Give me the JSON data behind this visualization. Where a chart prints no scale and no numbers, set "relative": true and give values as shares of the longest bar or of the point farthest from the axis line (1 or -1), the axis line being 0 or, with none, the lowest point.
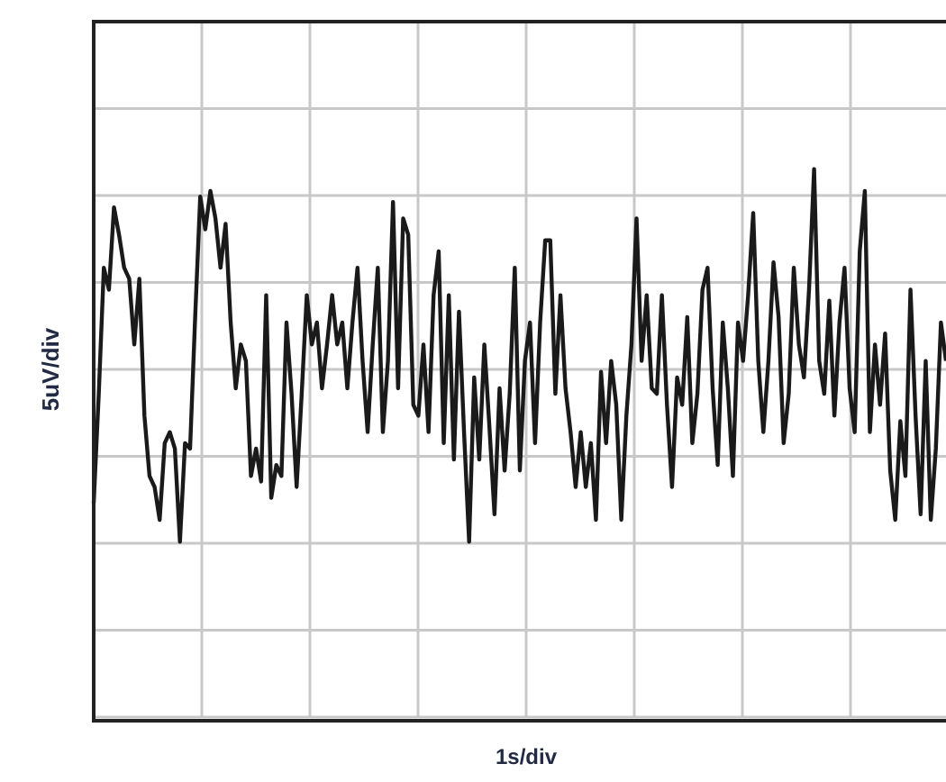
{
  "chart_data": {
    "type": "line",
    "xlabel": "1s/div",
    "ylabel": "5uV/div",
    "relative": true,
    "grid": true,
    "marker": "none",
    "line_style": "solid",
    "categories": [
      null,
      null,
      null,
      null,
      null,
      null,
      null,
      null,
      null,
      null,
      null,
      null,
      null,
      null,
      null,
      null,
      null,
      null,
      null,
      null,
      null,
      null,
      null,
      null,
      null,
      null,
      null,
      null,
      null,
      null,
      null,
      null,
      null,
      null,
      null,
      null,
      null,
      null,
      null,
      null,
      null,
      null,
      null,
      null,
      null,
      null,
      null,
      null,
      null,
      null,
      null,
      null,
      null,
      null,
      null,
      null,
      null,
      null,
      null,
      null,
      null,
      null,
      null,
      null,
      null,
      null,
      null,
      null,
      null,
      null,
      null,
      null,
      null,
      null,
      null,
      null,
      null,
      null,
      null,
      null,
      null,
      null,
      null,
      null,
      null,
      null,
      null,
      null,
      null,
      null,
      null,
      null,
      null,
      null,
      null,
      null,
      null,
      null,
      null,
      null,
      null,
      null,
      null,
      null,
      null,
      null,
      null,
      null,
      null,
      null,
      null,
      null,
      null,
      null,
      null,
      null,
      null,
      null,
      null,
      null,
      null,
      null,
      null,
      null,
      null,
      null,
      null,
      null,
      null,
      null,
      null,
      null,
      null,
      null,
      null,
      null,
      null,
      null,
      null,
      null,
      null,
      null,
      null,
      null,
      null,
      null,
      null,
      null,
      null,
      null,
      null,
      null,
      null,
      null,
      null,
      null,
      null,
      null,
      null,
      null,
      null,
      null,
      null,
      null,
      null,
      null,
      null,
      null,
      null
    ],
    "series": [
      {
        "color": "#1a1a1a",
        "values": [
          0.39,
          0.59,
          0.82,
          0.78,
          0.93,
          0.88,
          0.82,
          0.8,
          0.68,
          0.8,
          0.55,
          0.44,
          0.42,
          0.36,
          0.5,
          0.52,
          0.49,
          0.32,
          0.5,
          0.49,
          0.73,
          0.95,
          0.89,
          0.96,
          0.91,
          0.82,
          0.9,
          0.72,
          0.6,
          0.68,
          0.65,
          0.44,
          0.49,
          0.43,
          0.77,
          0.4,
          0.46,
          0.44,
          0.72,
          0.59,
          0.42,
          0.59,
          0.77,
          0.68,
          0.72,
          0.6,
          0.68,
          0.77,
          0.68,
          0.72,
          0.6,
          0.72,
          0.82,
          0.65,
          0.52,
          0.68,
          0.82,
          0.52,
          0.65,
          0.94,
          0.6,
          0.91,
          0.88,
          0.57,
          0.55,
          0.68,
          0.52,
          0.77,
          0.85,
          0.5,
          0.77,
          0.47,
          0.74,
          0.52,
          0.32,
          0.62,
          0.47,
          0.68,
          0.53,
          0.37,
          0.6,
          0.45,
          0.59,
          0.82,
          0.45,
          0.65,
          0.72,
          0.5,
          0.72,
          0.87,
          0.87,
          0.59,
          0.77,
          0.6,
          0.52,
          0.42,
          0.52,
          0.42,
          0.5,
          0.36,
          0.63,
          0.5,
          0.65,
          0.57,
          0.36,
          0.55,
          0.68,
          0.91,
          0.65,
          0.77,
          0.6,
          0.59,
          0.77,
          0.57,
          0.42,
          0.62,
          0.57,
          0.73,
          0.5,
          0.59,
          0.78,
          0.82,
          0.6,
          0.46,
          0.72,
          0.6,
          0.44,
          0.72,
          0.65,
          0.77,
          0.92,
          0.65,
          0.52,
          0.65,
          0.83,
          0.73,
          0.5,
          0.59,
          0.82,
          0.68,
          0.62,
          0.78,
          1,
          0.65,
          0.59,
          0.76,
          0.55,
          0.72,
          0.82,
          0.6,
          0.52,
          0.85,
          0.96,
          0.52,
          0.68,
          0.57,
          0.7,
          0.45,
          0.36,
          0.54,
          0.44,
          0.78,
          0.55,
          0.37,
          0.65,
          0.36,
          0.49,
          0.72,
          0.65
        ]
      }
    ]
  }
}
